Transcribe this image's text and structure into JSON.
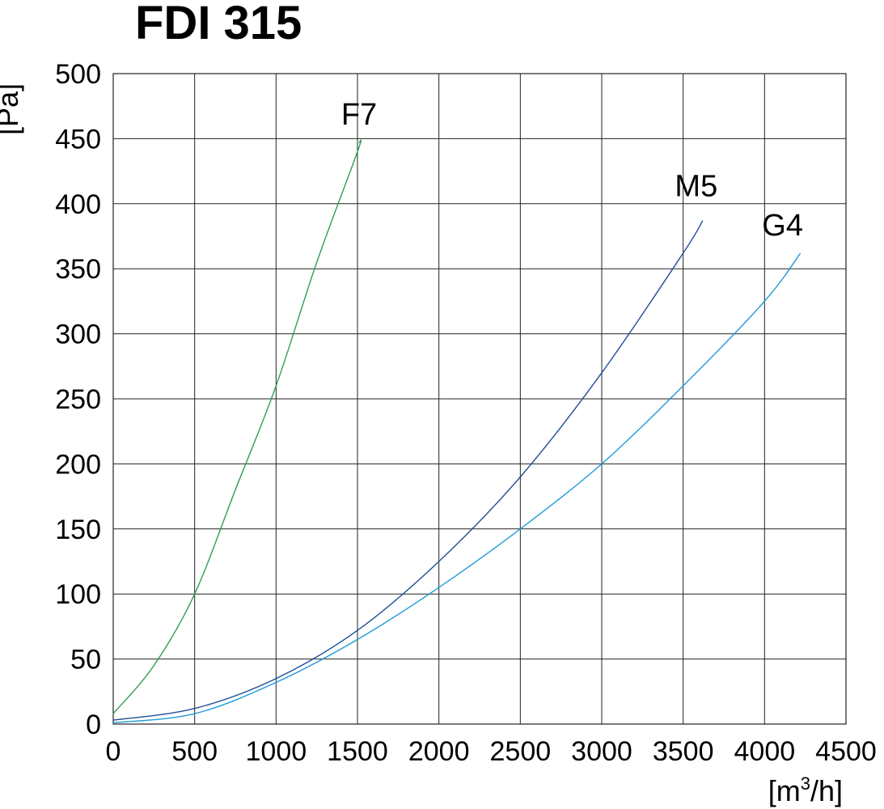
{
  "chart_data": {
    "type": "line",
    "title": "FDI 315",
    "xlabel_pre": "[m",
    "xlabel_sup": "3",
    "xlabel_post": "/h]",
    "ylabel": "[Pa]",
    "xlim": [
      0,
      4500
    ],
    "ylim": [
      0,
      500
    ],
    "x_ticks": [
      0,
      500,
      1000,
      1500,
      2000,
      2500,
      3000,
      3500,
      4000,
      4500
    ],
    "y_ticks": [
      0,
      50,
      100,
      150,
      200,
      250,
      300,
      350,
      400,
      450,
      500
    ],
    "grid": true,
    "series": [
      {
        "name": "F7",
        "color": "#2e9e57",
        "x": [
          0,
          250,
          500,
          750,
          1000,
          1250,
          1500,
          1510
        ],
        "y": [
          8,
          45,
          100,
          180,
          260,
          355,
          440,
          447
        ]
      },
      {
        "name": "M5",
        "color": "#1f4e96",
        "x": [
          0,
          500,
          1000,
          1500,
          2000,
          2500,
          3000,
          3500,
          3620
        ],
        "y": [
          3,
          12,
          35,
          72,
          125,
          190,
          270,
          362,
          387
        ]
      },
      {
        "name": "G4",
        "color": "#1f9bd7",
        "x": [
          0,
          500,
          1000,
          1500,
          2000,
          2500,
          3000,
          3500,
          4000,
          4220
        ],
        "y": [
          1,
          8,
          32,
          65,
          105,
          150,
          200,
          260,
          325,
          362
        ]
      }
    ]
  }
}
